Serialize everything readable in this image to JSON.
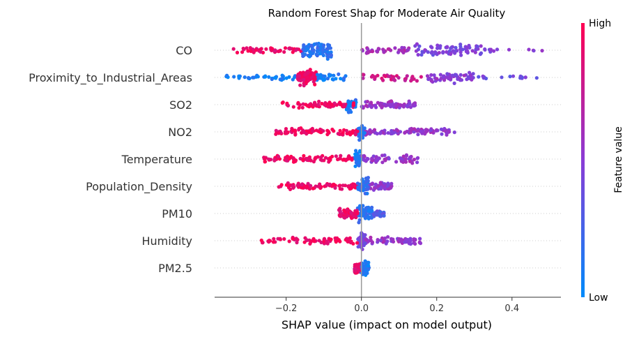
{
  "chart_data": {
    "type": "scatter",
    "subtype": "shap-beeswarm",
    "title": "Random Forest Shap for Moderate Air Quality",
    "xlabel": "SHAP value (impact on model output)",
    "xlim": [
      -0.39,
      0.53
    ],
    "xticks": [
      -0.2,
      0.0,
      0.2,
      0.4
    ],
    "xtick_labels": [
      "−0.2",
      "0.0",
      "0.2",
      "0.4"
    ],
    "colorbar": {
      "label": "Feature value",
      "high": "High",
      "low": "Low"
    },
    "colors": {
      "high": "#ff0052",
      "mid": "#8a3cd6",
      "low": "#008bfb",
      "zero_line": "#999999"
    },
    "grid": false,
    "features": [
      {
        "name": "CO",
        "seed": 11,
        "n": 260,
        "segments": [
          {
            "from": -0.34,
            "to": -0.16,
            "w": 0.18,
            "col": 0.92,
            "amp": 0.35
          },
          {
            "from": -0.16,
            "to": -0.08,
            "w": 0.35,
            "col": 0.15,
            "amp": 1.0
          },
          {
            "from": 0.0,
            "to": 0.14,
            "w": 0.12,
            "col": 0.62,
            "amp": 0.4
          },
          {
            "from": 0.14,
            "to": 0.32,
            "w": 0.27,
            "col": 0.45,
            "amp": 0.75
          },
          {
            "from": 0.32,
            "to": 0.49,
            "w": 0.08,
            "col": 0.5,
            "amp": 0.2
          }
        ]
      },
      {
        "name": "Proximity_to_Industrial_Areas",
        "seed": 23,
        "n": 260,
        "segments": [
          {
            "from": -0.36,
            "to": -0.15,
            "w": 0.15,
            "col": 0.05,
            "amp": 0.3
          },
          {
            "from": -0.17,
            "to": -0.12,
            "w": 0.3,
            "col": 0.92,
            "amp": 1.0
          },
          {
            "from": -0.12,
            "to": -0.04,
            "w": 0.15,
            "col": 0.1,
            "amp": 0.45
          },
          {
            "from": 0.0,
            "to": 0.17,
            "w": 0.14,
            "col": 0.78,
            "amp": 0.45
          },
          {
            "from": 0.17,
            "to": 0.3,
            "w": 0.18,
            "col": 0.5,
            "amp": 0.7
          },
          {
            "from": 0.3,
            "to": 0.47,
            "w": 0.06,
            "col": 0.4,
            "amp": 0.2
          }
        ]
      },
      {
        "name": "SO2",
        "seed": 37,
        "n": 220,
        "segments": [
          {
            "from": -0.21,
            "to": -0.02,
            "w": 0.45,
            "col": 0.93,
            "amp": 0.4
          },
          {
            "from": -0.04,
            "to": -0.01,
            "w": 0.2,
            "col": 0.1,
            "amp": 1.0
          },
          {
            "from": 0.0,
            "to": 0.15,
            "w": 0.35,
            "col": 0.55,
            "amp": 0.45
          }
        ]
      },
      {
        "name": "NO2",
        "seed": 41,
        "n": 200,
        "segments": [
          {
            "from": -0.23,
            "to": -0.01,
            "w": 0.45,
            "col": 0.93,
            "amp": 0.45
          },
          {
            "from": -0.01,
            "to": 0.01,
            "w": 0.15,
            "col": 0.12,
            "amp": 1.0
          },
          {
            "from": 0.01,
            "to": 0.25,
            "w": 0.4,
            "col": 0.55,
            "amp": 0.45
          }
        ]
      },
      {
        "name": "Temperature",
        "seed": 53,
        "n": 190,
        "segments": [
          {
            "from": -0.26,
            "to": -0.02,
            "w": 0.45,
            "col": 0.93,
            "amp": 0.4
          },
          {
            "from": -0.02,
            "to": 0.0,
            "w": 0.15,
            "col": 0.1,
            "amp": 1.0
          },
          {
            "from": 0.0,
            "to": 0.15,
            "w": 0.4,
            "col": 0.55,
            "amp": 0.5
          }
        ]
      },
      {
        "name": "Population_Density",
        "seed": 67,
        "n": 180,
        "segments": [
          {
            "from": -0.22,
            "to": -0.01,
            "w": 0.45,
            "col": 0.93,
            "amp": 0.4
          },
          {
            "from": -0.01,
            "to": 0.02,
            "w": 0.2,
            "col": 0.2,
            "amp": 1.0
          },
          {
            "from": 0.02,
            "to": 0.08,
            "w": 0.35,
            "col": 0.5,
            "amp": 0.45
          }
        ]
      },
      {
        "name": "PM10",
        "seed": 71,
        "n": 170,
        "segments": [
          {
            "from": -0.06,
            "to": -0.01,
            "w": 0.4,
            "col": 0.9,
            "amp": 0.6
          },
          {
            "from": -0.01,
            "to": 0.03,
            "w": 0.35,
            "col": 0.15,
            "amp": 1.0
          },
          {
            "from": 0.03,
            "to": 0.06,
            "w": 0.25,
            "col": 0.3,
            "amp": 0.4
          }
        ]
      },
      {
        "name": "Humidity",
        "seed": 83,
        "n": 180,
        "segments": [
          {
            "from": -0.27,
            "to": -0.01,
            "w": 0.45,
            "col": 0.93,
            "amp": 0.4
          },
          {
            "from": -0.01,
            "to": 0.01,
            "w": 0.15,
            "col": 0.45,
            "amp": 1.0
          },
          {
            "from": 0.01,
            "to": 0.16,
            "w": 0.4,
            "col": 0.55,
            "amp": 0.45
          }
        ]
      },
      {
        "name": "PM2.5",
        "seed": 97,
        "n": 90,
        "segments": [
          {
            "from": -0.02,
            "to": 0.0,
            "w": 0.5,
            "col": 0.9,
            "amp": 0.7
          },
          {
            "from": 0.0,
            "to": 0.02,
            "w": 0.5,
            "col": 0.1,
            "amp": 0.9
          }
        ]
      }
    ]
  }
}
